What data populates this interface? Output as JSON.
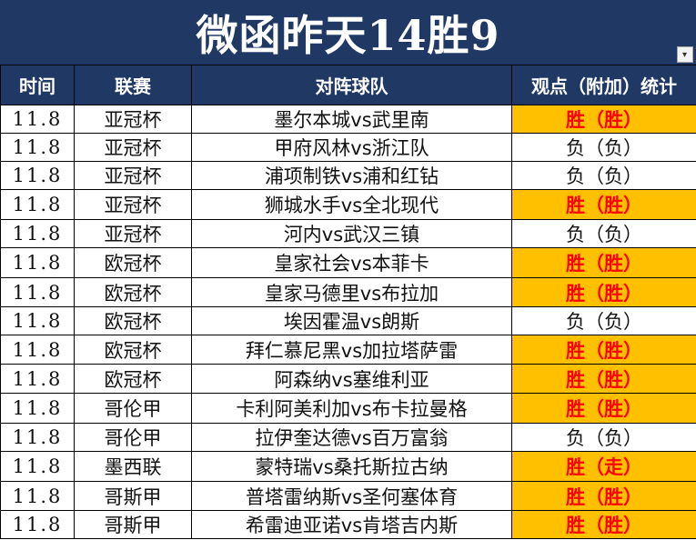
{
  "title": "微函昨天14胜9",
  "headers": {
    "time": "时间",
    "league": "联赛",
    "teams": "对阵球队",
    "stat": "观点（附加）统计"
  },
  "rows": [
    {
      "time": "11.8",
      "league": "亚冠杯",
      "teams": "墨尔本城vs武里南",
      "result": "胜（胜）",
      "win": true
    },
    {
      "time": "11.8",
      "league": "亚冠杯",
      "teams": "甲府风林vs浙江队",
      "result": "负（负）",
      "win": false
    },
    {
      "time": "11.8",
      "league": "亚冠杯",
      "teams": "浦项制铁vs浦和红钻",
      "result": "负（负）",
      "win": false
    },
    {
      "time": "11.8",
      "league": "亚冠杯",
      "teams": "狮城水手vs全北现代",
      "result": "胜（胜）",
      "win": true
    },
    {
      "time": "11.8",
      "league": "亚冠杯",
      "teams": "河内vs武汉三镇",
      "result": "负（负）",
      "win": false
    },
    {
      "time": "11.8",
      "league": "欧冠杯",
      "teams": "皇家社会vs本菲卡",
      "result": "胜（胜）",
      "win": true
    },
    {
      "time": "11.8",
      "league": "欧冠杯",
      "teams": "皇家马德里vs布拉加",
      "result": "胜（胜）",
      "win": true
    },
    {
      "time": "11.8",
      "league": "欧冠杯",
      "teams": "埃因霍温vs朗斯",
      "result": "负（负）",
      "win": false
    },
    {
      "time": "11.8",
      "league": "欧冠杯",
      "teams": "拜仁慕尼黑vs加拉塔萨雷",
      "result": "胜（胜）",
      "win": true
    },
    {
      "time": "11.8",
      "league": "欧冠杯",
      "teams": "阿森纳vs塞维利亚",
      "result": "胜（胜）",
      "win": true
    },
    {
      "time": "11.8",
      "league": "哥伦甲",
      "teams": "卡利阿美利加vs布卡拉曼格",
      "result": "胜（胜）",
      "win": true
    },
    {
      "time": "11.8",
      "league": "哥伦甲",
      "teams": "拉伊奎达德vs百万富翁",
      "result": "负（负）",
      "win": false
    },
    {
      "time": "11.8",
      "league": "墨西联",
      "teams": "蒙特瑞vs桑托斯拉古纳",
      "result": "胜（走）",
      "win": true
    },
    {
      "time": "11.8",
      "league": "哥斯甲",
      "teams": "普塔雷纳斯vs圣何塞体育",
      "result": "胜（胜）",
      "win": true
    },
    {
      "time": "11.8",
      "league": "哥斯甲",
      "teams": "希雷迪亚诺vs肯塔吉内斯",
      "result": "胜（胜）",
      "win": true
    }
  ],
  "colors": {
    "header_bg": "#1f3864",
    "win_bg": "#ffc000",
    "win_text": "#ff0000"
  },
  "icons": {
    "filter": "chevron-down-icon"
  }
}
